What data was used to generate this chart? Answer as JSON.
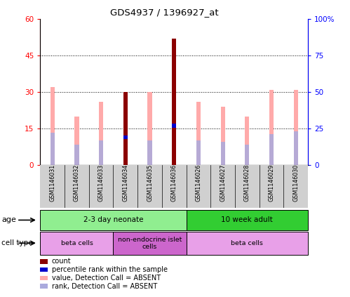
{
  "title": "GDS4937 / 1396927_at",
  "samples": [
    "GSM1146031",
    "GSM1146032",
    "GSM1146033",
    "GSM1146034",
    "GSM1146035",
    "GSM1146036",
    "GSM1146026",
    "GSM1146027",
    "GSM1146028",
    "GSM1146029",
    "GSM1146030"
  ],
  "pink_values": [
    32,
    20,
    26,
    30,
    30,
    52,
    26,
    24,
    20,
    31,
    31
  ],
  "pink_rank": [
    22,
    14,
    17,
    21,
    17,
    27,
    17,
    16,
    14,
    21,
    23
  ],
  "red_values": [
    0,
    0,
    0,
    30,
    0,
    52,
    0,
    0,
    0,
    0,
    0
  ],
  "blue_rank": [
    22,
    14,
    17,
    19,
    17,
    27,
    17,
    16,
    14,
    21,
    23
  ],
  "has_red": [
    false,
    false,
    false,
    true,
    false,
    true,
    false,
    false,
    false,
    false,
    false
  ],
  "ylim_left": [
    0,
    60
  ],
  "ylim_right": [
    0,
    100
  ],
  "yticks_left": [
    0,
    15,
    30,
    45,
    60
  ],
  "yticks_right": [
    0,
    25,
    50,
    75,
    100
  ],
  "ytick_labels_left": [
    "0",
    "15",
    "30",
    "45",
    "60"
  ],
  "ytick_labels_right": [
    "0",
    "25",
    "50",
    "75",
    "100%"
  ],
  "age_groups": [
    {
      "label": "2-3 day neonate",
      "start": 0,
      "end": 6,
      "color": "#90ee90"
    },
    {
      "label": "10 week adult",
      "start": 6,
      "end": 11,
      "color": "#32cd32"
    }
  ],
  "cell_type_groups": [
    {
      "label": "beta cells",
      "start": 0,
      "end": 3,
      "color": "#e8a0e8"
    },
    {
      "label": "non-endocrine islet\ncells",
      "start": 3,
      "end": 6,
      "color": "#cc66cc"
    },
    {
      "label": "beta cells",
      "start": 6,
      "end": 11,
      "color": "#e8a0e8"
    }
  ],
  "pink_color": "#ffaaaa",
  "red_color": "#8b0000",
  "blue_color": "#0000cc",
  "blue_rank_color": "#aaaadd",
  "gray_bg": "#d0d0d0"
}
